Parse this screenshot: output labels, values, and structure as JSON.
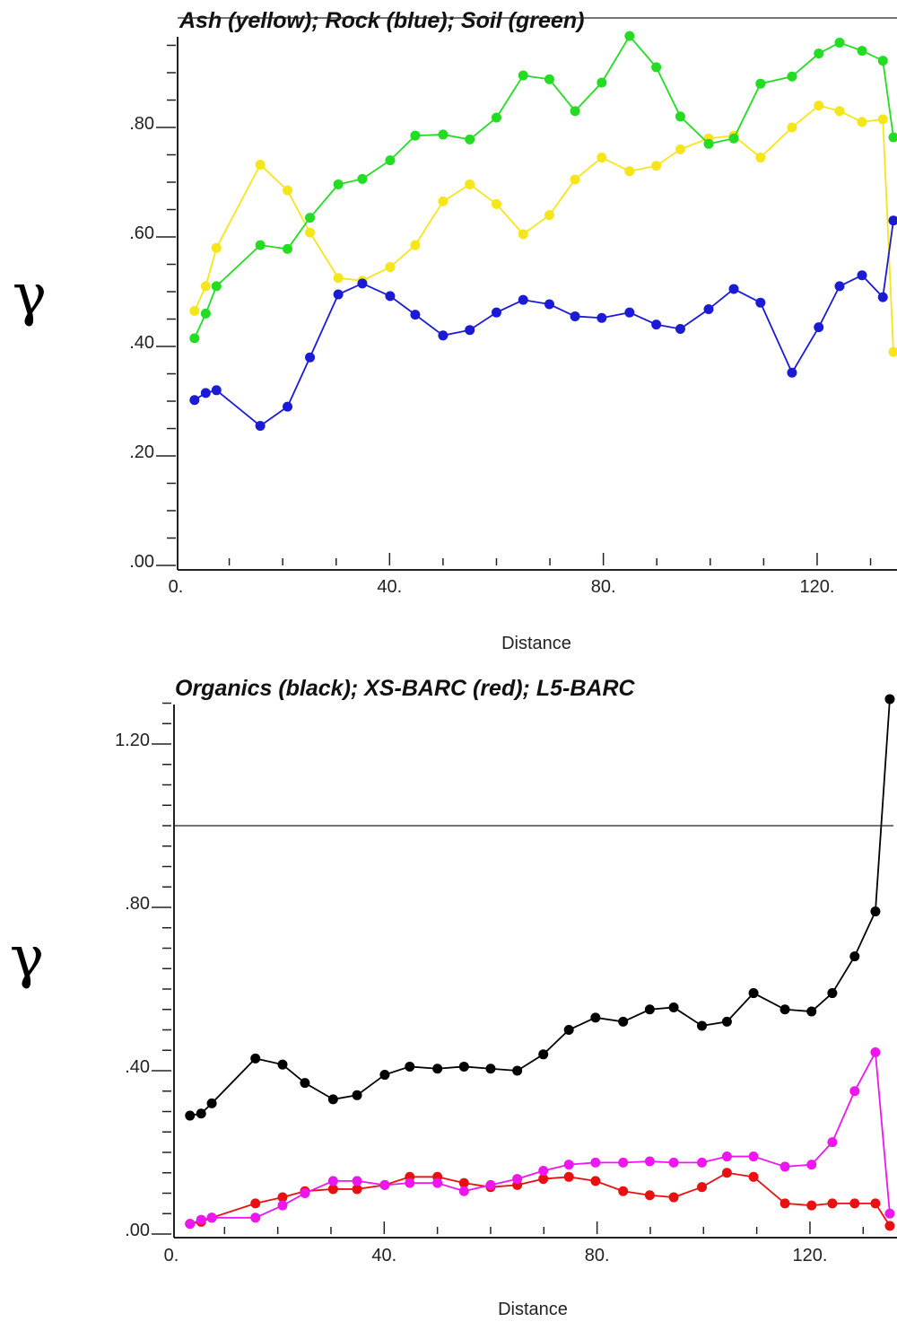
{
  "chart_data": [
    {
      "type": "line",
      "title": "Ash (yellow); Rock (blue); Soil (green)",
      "xlabel": "Distance",
      "ylabel": "γ",
      "xlim": [
        0,
        135
      ],
      "ylim": [
        0,
        0.97
      ],
      "x_ticks": [
        {
          "value": 0,
          "label": "0."
        },
        {
          "value": 40,
          "label": "40."
        },
        {
          "value": 80,
          "label": "80."
        },
        {
          "value": 120,
          "label": "120."
        }
      ],
      "y_ticks": [
        {
          "value": 0.0,
          "label": ".00"
        },
        {
          "value": 0.2,
          "label": ".20"
        },
        {
          "value": 0.4,
          "label": ".40"
        },
        {
          "value": 0.6,
          "label": ".60"
        },
        {
          "value": 0.8,
          "label": ".80"
        }
      ],
      "reference_line": 1.0,
      "grid": false,
      "series": [
        {
          "name": "Ash",
          "color": "#f5e61a",
          "x": [
            3.5,
            5.6,
            7.6,
            15.8,
            20.9,
            25.1,
            30.4,
            34.9,
            40.1,
            44.8,
            50.0,
            55.0,
            60.0,
            65.0,
            69.9,
            74.7,
            79.7,
            84.9,
            89.9,
            94.4,
            99.7,
            104.4,
            109.4,
            115.3,
            120.3,
            124.2,
            128.4,
            132.3,
            135.0
          ],
          "y": [
            0.465,
            0.51,
            0.58,
            0.732,
            0.685,
            0.608,
            0.525,
            0.52,
            0.545,
            0.585,
            0.665,
            0.696,
            0.66,
            0.605,
            0.64,
            0.705,
            0.745,
            0.72,
            0.73,
            0.76,
            0.78,
            0.785,
            0.745,
            0.8,
            0.84,
            0.83,
            0.81,
            0.815,
            0.39
          ]
        },
        {
          "name": "Rock",
          "color": "#1b1bd6",
          "x": [
            3.5,
            5.6,
            7.6,
            15.8,
            20.9,
            25.1,
            30.4,
            34.9,
            40.1,
            44.8,
            50.0,
            55.0,
            60.0,
            65.0,
            69.9,
            74.7,
            79.7,
            84.9,
            89.9,
            94.4,
            99.7,
            104.4,
            109.4,
            115.3,
            120.3,
            124.2,
            128.4,
            132.3,
            135.0
          ],
          "y": [
            0.302,
            0.315,
            0.32,
            0.255,
            0.29,
            0.38,
            0.495,
            0.515,
            0.492,
            0.458,
            0.42,
            0.43,
            0.462,
            0.485,
            0.477,
            0.455,
            0.452,
            0.462,
            0.44,
            0.432,
            0.468,
            0.505,
            0.48,
            0.352,
            0.435,
            0.51,
            0.53,
            0.49,
            0.63
          ]
        },
        {
          "name": "Soil",
          "color": "#22dd22",
          "x": [
            3.5,
            5.6,
            7.6,
            15.8,
            20.9,
            25.1,
            30.4,
            34.9,
            40.1,
            44.8,
            50.0,
            55.0,
            60.0,
            65.0,
            69.9,
            74.7,
            79.7,
            84.9,
            89.9,
            94.4,
            99.7,
            104.4,
            109.4,
            115.3,
            120.3,
            124.2,
            128.4,
            132.3,
            135.0
          ],
          "y": [
            0.415,
            0.46,
            0.51,
            0.585,
            0.578,
            0.635,
            0.696,
            0.706,
            0.74,
            0.785,
            0.787,
            0.778,
            0.818,
            0.895,
            0.888,
            0.83,
            0.882,
            0.967,
            0.91,
            0.82,
            0.77,
            0.78,
            0.88,
            0.893,
            0.935,
            0.955,
            0.94,
            0.922,
            0.782
          ]
        }
      ]
    },
    {
      "type": "line",
      "title": "Organics (black); XS-BARC (red); L5-BARC",
      "xlabel": "Distance",
      "ylabel": "γ",
      "xlim": [
        0,
        135
      ],
      "ylim": [
        0,
        1.32
      ],
      "x_ticks": [
        {
          "value": 0,
          "label": "0."
        },
        {
          "value": 40,
          "label": "40."
        },
        {
          "value": 80,
          "label": "80."
        },
        {
          "value": 120,
          "label": "120."
        }
      ],
      "y_ticks": [
        {
          "value": 0.0,
          "label": ".00"
        },
        {
          "value": 0.4,
          "label": ".40"
        },
        {
          "value": 0.8,
          "label": ".80"
        },
        {
          "value": 1.2,
          "label": "1.20"
        }
      ],
      "reference_line": 1.0,
      "grid": false,
      "series": [
        {
          "name": "Organics",
          "color": "#000000",
          "x": [
            3.5,
            5.6,
            7.6,
            15.8,
            20.9,
            25.1,
            30.4,
            34.9,
            40.1,
            44.8,
            50.0,
            55.0,
            60.0,
            65.0,
            69.9,
            74.7,
            79.7,
            84.9,
            89.9,
            94.4,
            99.7,
            104.4,
            109.4,
            115.3,
            120.3,
            124.2,
            128.4,
            132.3,
            135.0
          ],
          "y": [
            0.29,
            0.295,
            0.32,
            0.43,
            0.415,
            0.37,
            0.33,
            0.34,
            0.39,
            0.41,
            0.405,
            0.41,
            0.405,
            0.4,
            0.44,
            0.5,
            0.53,
            0.52,
            0.55,
            0.555,
            0.51,
            0.52,
            0.59,
            0.55,
            0.545,
            0.59,
            0.68,
            0.79,
            1.31
          ]
        },
        {
          "name": "XS-BARC",
          "color": "#e81010",
          "x": [
            3.5,
            5.6,
            7.6,
            15.8,
            20.9,
            25.1,
            30.4,
            34.9,
            40.1,
            44.8,
            50.0,
            55.0,
            60.0,
            65.0,
            69.9,
            74.7,
            79.7,
            84.9,
            89.9,
            94.4,
            99.7,
            104.4,
            109.4,
            115.3,
            120.3,
            124.2,
            128.4,
            132.3,
            135.0
          ],
          "y": [
            0.025,
            0.03,
            0.04,
            0.075,
            0.09,
            0.105,
            0.11,
            0.11,
            0.12,
            0.14,
            0.14,
            0.125,
            0.115,
            0.12,
            0.135,
            0.14,
            0.13,
            0.105,
            0.095,
            0.09,
            0.115,
            0.15,
            0.14,
            0.075,
            0.07,
            0.075,
            0.075,
            0.075,
            0.02
          ]
        },
        {
          "name": "L5-BARC",
          "color": "#ee16ee",
          "x": [
            3.5,
            5.6,
            7.6,
            15.8,
            20.9,
            25.1,
            30.4,
            34.9,
            40.1,
            44.8,
            50.0,
            55.0,
            60.0,
            65.0,
            69.9,
            74.7,
            79.7,
            84.9,
            89.9,
            94.4,
            99.7,
            104.4,
            109.4,
            115.3,
            120.3,
            124.2,
            128.4,
            132.3,
            135.0
          ],
          "y": [
            0.025,
            0.035,
            0.04,
            0.04,
            0.07,
            0.1,
            0.13,
            0.13,
            0.12,
            0.125,
            0.125,
            0.105,
            0.12,
            0.135,
            0.155,
            0.17,
            0.175,
            0.175,
            0.178,
            0.175,
            0.175,
            0.19,
            0.19,
            0.165,
            0.17,
            0.225,
            0.35,
            0.445,
            0.05
          ]
        }
      ]
    }
  ]
}
